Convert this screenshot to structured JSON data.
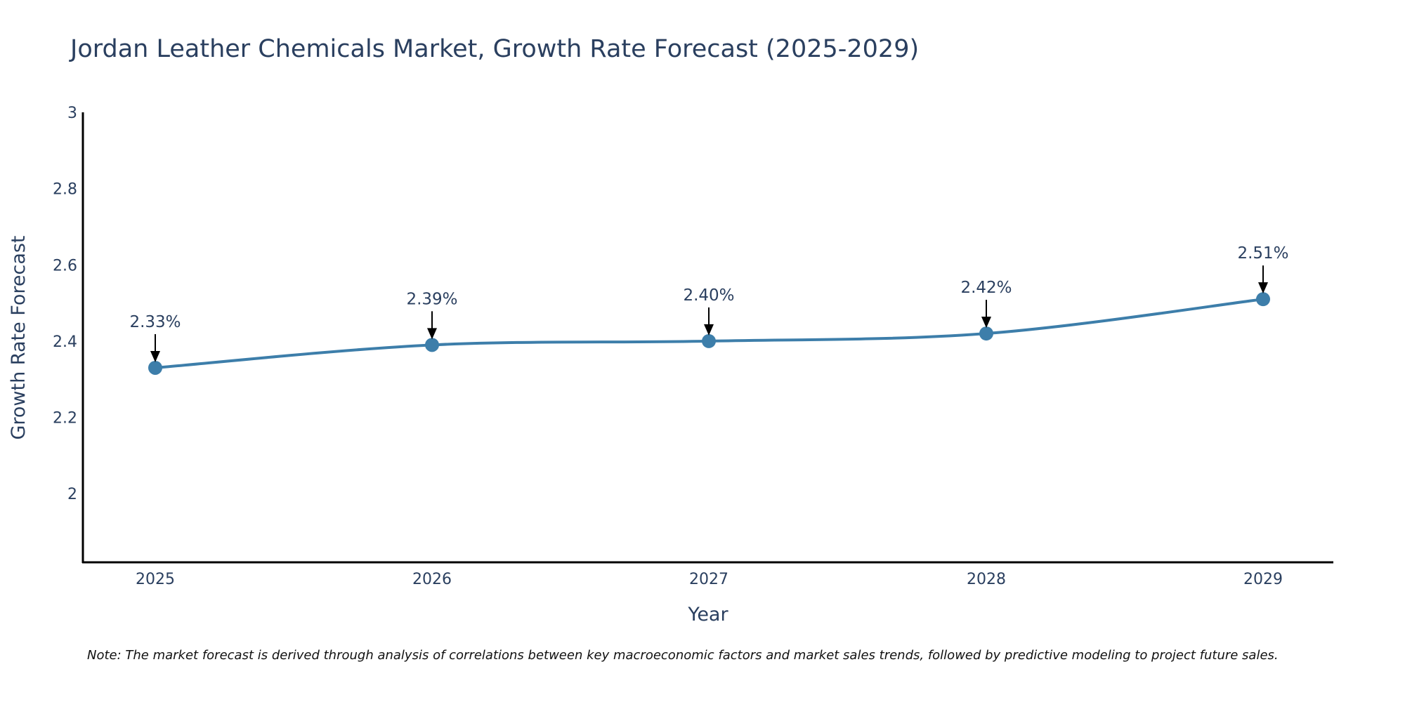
{
  "chart_data": {
    "type": "line",
    "title": "Jordan Leather Chemicals Market, Growth Rate Forecast (2025-2029)",
    "xlabel": "Year",
    "ylabel": "Growth Rate Forecast",
    "x": [
      "2025",
      "2026",
      "2027",
      "2028",
      "2029"
    ],
    "series": [
      {
        "name": "Growth Rate Forecast",
        "values": [
          2.33,
          2.39,
          2.4,
          2.42,
          2.51
        ],
        "color": "#3d7eaa"
      }
    ],
    "data_labels": [
      "2.33%",
      "2.39%",
      "2.40%",
      "2.42%",
      "2.51%"
    ],
    "ylim": [
      1.82,
      3.0
    ],
    "y_ticks": [
      2,
      2.2,
      2.4,
      2.6,
      2.8,
      3
    ],
    "y_tick_labels": [
      "2",
      "2.2",
      "2.4",
      "2.6",
      "2.8",
      "3"
    ],
    "grid": false,
    "line_shape": "spline",
    "note": "Note: The market forecast is derived through analysis of correlations between key macroeconomic factors and market sales trends, followed by predictive modeling to project future sales."
  }
}
